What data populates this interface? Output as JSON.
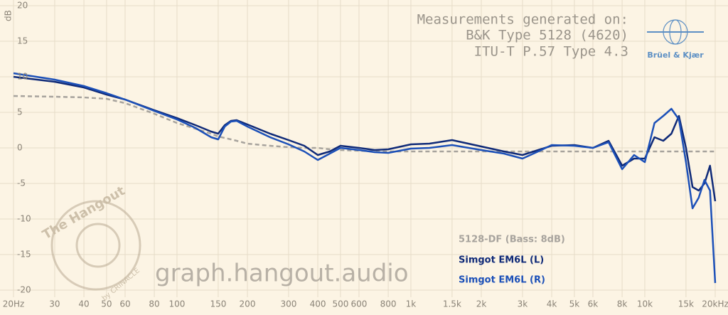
{
  "chart_data": {
    "type": "line",
    "y_label": "dB",
    "annotation_lines": [
      "Measurements generated on:",
      "B&K Type 5128 (4620)",
      "ITU-T P.57 Type 4.3"
    ],
    "brand": "Brüel & Kjær",
    "watermark": "graph.hangout.audio",
    "logo_text": [
      "The Hangout",
      "by CRINACLE"
    ],
    "log_x": true,
    "grid": true,
    "legend": "lower right",
    "xlim": [
      20,
      20000
    ],
    "ylim": [
      -21,
      21
    ],
    "xticks": [
      {
        "value": 20,
        "label": "20Hz"
      },
      30,
      40,
      50,
      60,
      80,
      100,
      150,
      200,
      300,
      400,
      500,
      600,
      800,
      {
        "value": 1000,
        "label": "1k"
      },
      {
        "value": 1500,
        "label": "1.5k"
      },
      {
        "value": 2000,
        "label": "2k"
      },
      {
        "value": 3000,
        "label": "3k"
      },
      {
        "value": 4000,
        "label": "4k"
      },
      {
        "value": 5000,
        "label": "5k"
      },
      {
        "value": 6000,
        "label": "6k"
      },
      {
        "value": 8000,
        "label": "8k"
      },
      {
        "value": 10000,
        "label": "10k"
      },
      {
        "value": 15000,
        "label": "15k"
      },
      {
        "value": 20000,
        "label": "20kHz"
      }
    ],
    "yticks": [
      -20,
      -15,
      -10,
      -5,
      0,
      5,
      10,
      15,
      20
    ],
    "x": [
      20,
      30,
      40,
      50,
      60,
      80,
      100,
      120,
      140,
      150,
      160,
      170,
      180,
      200,
      250,
      300,
      350,
      400,
      450,
      500,
      600,
      700,
      800,
      1000,
      1200,
      1500,
      2000,
      2500,
      3000,
      3500,
      4000,
      5000,
      6000,
      7000,
      8000,
      9000,
      10000,
      11000,
      12000,
      13000,
      14000,
      15000,
      16000,
      17000,
      18000,
      19000,
      20000
    ],
    "series": [
      {
        "name": "5128-DF (Bass: 8dB)",
        "color": "#a7a39d",
        "dashed": true,
        "values": [
          7.3,
          7.2,
          7.1,
          6.9,
          6.3,
          4.8,
          3.5,
          2.7,
          2.0,
          1.6,
          1.4,
          1.2,
          1.0,
          0.6,
          0.3,
          0.1,
          0,
          0,
          -0.2,
          -0.3,
          -0.4,
          -0.5,
          -0.5,
          -0.5,
          -0.5,
          -0.5,
          -0.5,
          -0.5,
          -0.5,
          -0.5,
          -0.5,
          -0.5,
          -0.5,
          -0.5,
          -0.5,
          -0.5,
          -0.5,
          -0.5,
          -0.5,
          -0.5,
          -0.5,
          -0.5,
          -0.5,
          -0.5,
          -0.5,
          -0.5,
          -0.5
        ]
      },
      {
        "name": "Simgot EM6L (L)",
        "color": "#0f2a78",
        "values": [
          10.0,
          9.3,
          8.5,
          7.5,
          6.8,
          5.3,
          4.2,
          3.2,
          2.3,
          2.0,
          3.2,
          3.8,
          3.9,
          3.3,
          2.0,
          1.1,
          0.3,
          -1.0,
          -0.5,
          0.3,
          0.0,
          -0.3,
          -0.2,
          0.5,
          0.6,
          1.1,
          0.2,
          -0.5,
          -1.0,
          -0.3,
          0.3,
          0.4,
          0,
          1.0,
          -2.5,
          -1.5,
          -1.5,
          1.5,
          1.0,
          2.0,
          4.5,
          0,
          -5.5,
          -6,
          -5,
          -2.5,
          -7.5
        ]
      },
      {
        "name": "Simgot EM6L (R)",
        "color": "#1c50b8",
        "values": [
          10.5,
          9.6,
          8.7,
          7.7,
          6.8,
          5.2,
          4.0,
          2.8,
          1.5,
          1.2,
          3.0,
          3.7,
          3.8,
          3.0,
          1.5,
          0.5,
          -0.5,
          -1.7,
          -0.8,
          0.0,
          -0.3,
          -0.6,
          -0.7,
          -0.1,
          0.0,
          0.4,
          -0.3,
          -0.8,
          -1.5,
          -0.5,
          0.4,
          0.3,
          0,
          0.8,
          -3.0,
          -1.0,
          -2.0,
          3.5,
          4.5,
          5.5,
          4.0,
          -2.0,
          -8.5,
          -7,
          -4.5,
          -6,
          -19
        ]
      }
    ]
  }
}
